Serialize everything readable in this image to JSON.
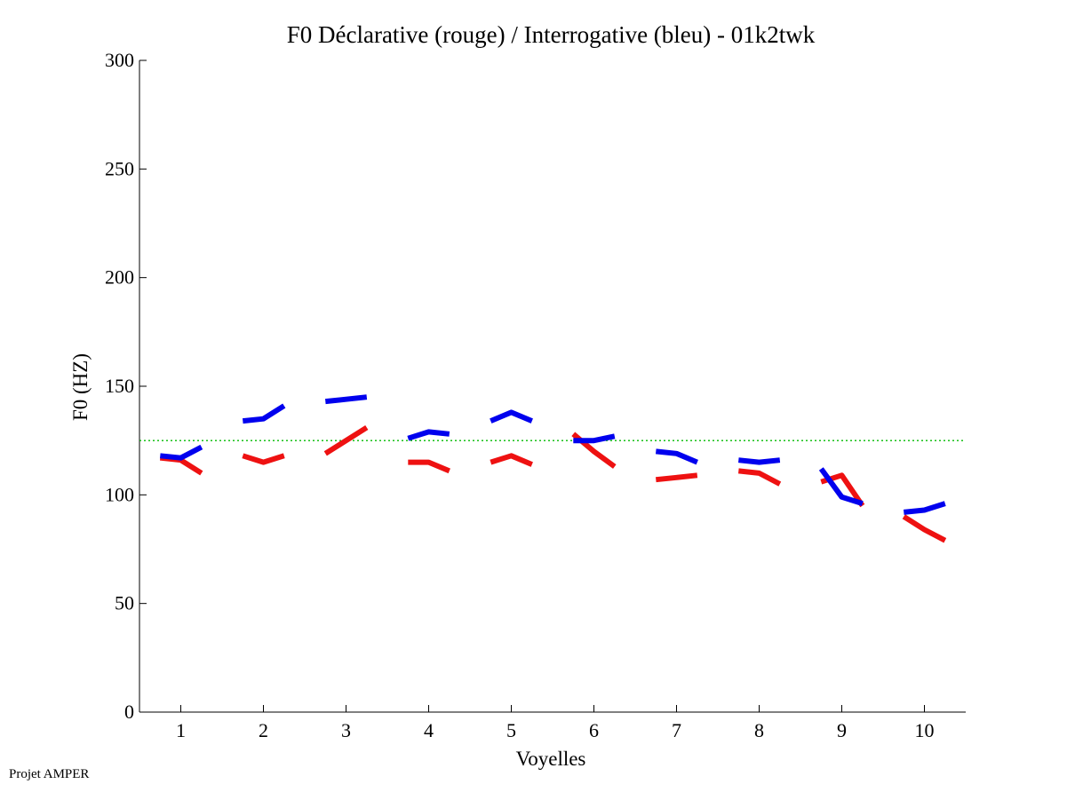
{
  "chart_data": {
    "type": "line",
    "title": "F0 Déclarative (rouge) / Interrogative (bleu) - 01k2twk",
    "xlabel": "Voyelles",
    "ylabel": "F0 (HZ)",
    "xlim": [
      0.5,
      10.5
    ],
    "ylim": [
      0,
      300
    ],
    "xticks": [
      1,
      2,
      3,
      4,
      5,
      6,
      7,
      8,
      9,
      10
    ],
    "yticks": [
      0,
      50,
      100,
      150,
      200,
      250,
      300
    ],
    "grid": false,
    "reference_line": {
      "y": 125,
      "style": "dotted",
      "color": "#00bb00"
    },
    "series": [
      {
        "name": "Déclarative",
        "color": "#ee1111",
        "segments": [
          {
            "x": [
              0.75,
              1.0,
              1.25
            ],
            "y": [
              117,
              116,
              110
            ]
          },
          {
            "x": [
              1.75,
              2.0,
              2.25
            ],
            "y": [
              118,
              115,
              118
            ]
          },
          {
            "x": [
              2.75,
              3.0,
              3.25
            ],
            "y": [
              119,
              125,
              131
            ]
          },
          {
            "x": [
              3.75,
              4.0,
              4.25
            ],
            "y": [
              115,
              115,
              111
            ]
          },
          {
            "x": [
              4.75,
              5.0,
              5.25
            ],
            "y": [
              115,
              118,
              114
            ]
          },
          {
            "x": [
              5.75,
              6.0,
              6.25
            ],
            "y": [
              128,
              120,
              113
            ]
          },
          {
            "x": [
              6.75,
              7.0,
              7.25
            ],
            "y": [
              107,
              108,
              109
            ]
          },
          {
            "x": [
              7.75,
              8.0,
              8.25
            ],
            "y": [
              111,
              110,
              105
            ]
          },
          {
            "x": [
              8.75,
              9.0,
              9.25
            ],
            "y": [
              106,
              109,
              95
            ]
          },
          {
            "x": [
              9.75,
              10.0,
              10.25
            ],
            "y": [
              90,
              84,
              79
            ]
          }
        ]
      },
      {
        "name": "Interrogative",
        "color": "#0000ee",
        "segments": [
          {
            "x": [
              0.75,
              1.0,
              1.25
            ],
            "y": [
              118,
              117,
              122
            ]
          },
          {
            "x": [
              1.75,
              2.0,
              2.25
            ],
            "y": [
              134,
              135,
              141
            ]
          },
          {
            "x": [
              2.75,
              3.0,
              3.25
            ],
            "y": [
              143,
              144,
              145
            ]
          },
          {
            "x": [
              3.75,
              4.0,
              4.25
            ],
            "y": [
              126,
              129,
              128
            ]
          },
          {
            "x": [
              4.75,
              5.0,
              5.25
            ],
            "y": [
              134,
              138,
              134
            ]
          },
          {
            "x": [
              5.75,
              6.0,
              6.25
            ],
            "y": [
              125,
              125,
              127
            ]
          },
          {
            "x": [
              6.75,
              7.0,
              7.25
            ],
            "y": [
              120,
              119,
              115
            ]
          },
          {
            "x": [
              7.75,
              8.0,
              8.25
            ],
            "y": [
              116,
              115,
              116
            ]
          },
          {
            "x": [
              8.75,
              9.0,
              9.25
            ],
            "y": [
              112,
              99,
              96
            ]
          },
          {
            "x": [
              9.75,
              10.0,
              10.25
            ],
            "y": [
              92,
              93,
              96
            ]
          }
        ]
      }
    ]
  },
  "footer": "Projet AMPER"
}
